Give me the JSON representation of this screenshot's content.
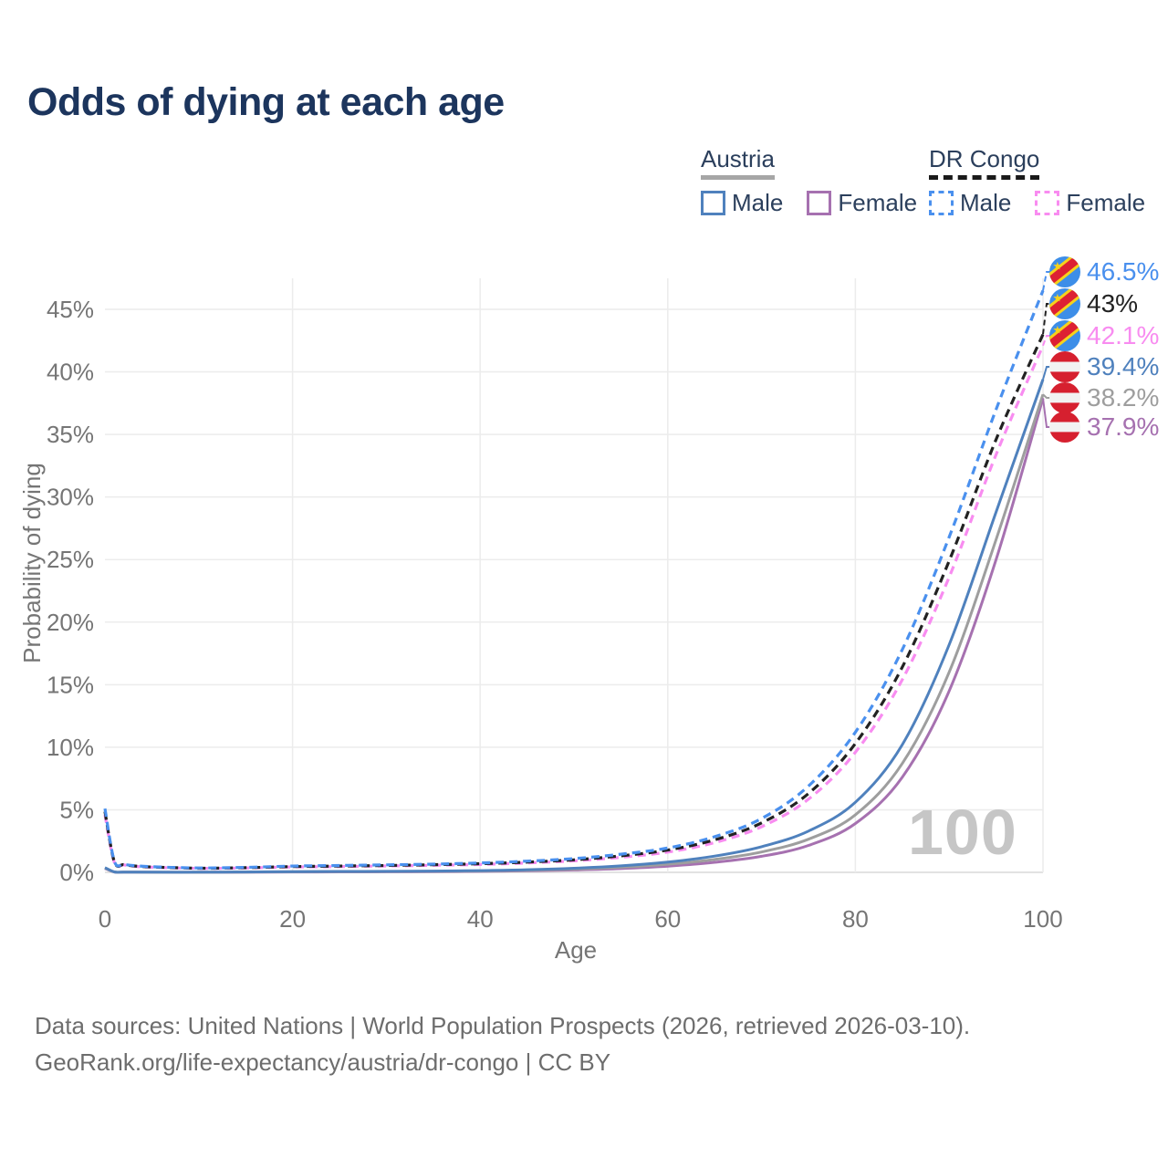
{
  "title": "Odds of dying at each age",
  "watermark": "100",
  "legend": {
    "austria": {
      "country": "Austria",
      "male": "Male",
      "female": "Female"
    },
    "drcongo": {
      "country": "DR Congo",
      "male": "Male",
      "female": "Female"
    }
  },
  "footer": {
    "line1": "Data sources: United Nations | World Population Prospects (2026, retrieved 2026-03-10).",
    "line2": "GeoRank.org/life-expectancy/austria/dr-congo | CC BY"
  },
  "colors": {
    "title": "#1c355d",
    "legend_text": "#2b3f5c",
    "austria_underline": "#a6a6a6",
    "drcongo_underline": "#1a1a1a",
    "axis_text": "#757575",
    "grid": "#ececec",
    "grid_zero": "#d9d9d9",
    "watermark": "#c6c6c6",
    "footer_text": "#6d6d6d",
    "flag_austria_red": "#d6202f",
    "flag_austria_white": "#f2f2f2",
    "flag_congo_blue": "#3d8ee8",
    "flag_congo_red": "#dd2033",
    "flag_congo_yellow": "#f7d21b"
  },
  "chart_data": {
    "type": "line",
    "title": "Odds of dying at each age",
    "xlabel": "Age",
    "ylabel": "Probability of dying",
    "xlim": [
      0,
      100
    ],
    "ylim_percent": [
      0,
      47.5
    ],
    "xticks": [
      0,
      20,
      40,
      60,
      80,
      100
    ],
    "yticks_percent": [
      0,
      5,
      10,
      15,
      20,
      25,
      30,
      35,
      40,
      45
    ],
    "ytick_suffix": "%",
    "grid": true,
    "legend_position": "top-right",
    "ages": [
      0,
      1,
      2,
      3,
      5,
      10,
      15,
      20,
      25,
      30,
      35,
      40,
      45,
      50,
      55,
      60,
      65,
      70,
      75,
      80,
      85,
      90,
      95,
      100
    ],
    "series": [
      {
        "id": "congo_male",
        "name": "DR Congo Male",
        "country": "DR Congo",
        "sex": "Male",
        "flag": "cd",
        "dash": true,
        "color": "#4a90ee",
        "end_label": "46.5%",
        "end_value": 46.5,
        "values": [
          5.1,
          0.9,
          0.65,
          0.55,
          0.45,
          0.35,
          0.4,
          0.5,
          0.55,
          0.6,
          0.66,
          0.75,
          0.9,
          1.1,
          1.45,
          1.95,
          2.85,
          4.3,
          6.9,
          11.2,
          17.8,
          26.8,
          37.0,
          46.5
        ]
      },
      {
        "id": "congo_both",
        "name": "DR Congo Both sexes",
        "country": "DR Congo",
        "sex": "Both",
        "flag": "cd",
        "dash": true,
        "color": "#222222",
        "end_label": "43%",
        "end_value": 43.0,
        "values": [
          4.85,
          0.85,
          0.62,
          0.52,
          0.43,
          0.33,
          0.37,
          0.46,
          0.5,
          0.55,
          0.61,
          0.69,
          0.82,
          1.0,
          1.32,
          1.78,
          2.6,
          3.95,
          6.3,
          10.3,
          16.4,
          24.9,
          34.6,
          43.0
        ]
      },
      {
        "id": "congo_female",
        "name": "DR Congo Female",
        "country": "DR Congo",
        "sex": "Female",
        "flag": "cd",
        "dash": true,
        "color": "#f88cf0",
        "end_label": "42.1%",
        "end_value": 42.1,
        "values": [
          4.6,
          0.8,
          0.6,
          0.5,
          0.41,
          0.32,
          0.35,
          0.43,
          0.46,
          0.51,
          0.56,
          0.63,
          0.75,
          0.92,
          1.2,
          1.62,
          2.38,
          3.65,
          5.85,
          9.6,
          15.4,
          23.6,
          33.4,
          42.1
        ]
      },
      {
        "id": "austria_male",
        "name": "Austria Male",
        "country": "Austria",
        "sex": "Male",
        "flag": "at",
        "dash": false,
        "color": "#4f81bd",
        "end_label": "39.4%",
        "end_value": 39.4,
        "values": [
          0.38,
          0.04,
          0.02,
          0.015,
          0.012,
          0.012,
          0.03,
          0.06,
          0.07,
          0.08,
          0.1,
          0.14,
          0.21,
          0.33,
          0.52,
          0.82,
          1.3,
          2.05,
          3.3,
          5.6,
          10.2,
          18.2,
          28.8,
          39.4
        ]
      },
      {
        "id": "austria_both",
        "name": "Austria Both sexes",
        "country": "Austria",
        "sex": "Both",
        "flag": "at",
        "dash": false,
        "color": "#9e9e9e",
        "end_label": "38.2%",
        "end_value": 38.2,
        "values": [
          0.34,
          0.035,
          0.018,
          0.013,
          0.01,
          0.01,
          0.025,
          0.045,
          0.055,
          0.065,
          0.08,
          0.11,
          0.17,
          0.26,
          0.41,
          0.65,
          1.03,
          1.63,
          2.65,
          4.6,
          8.7,
          16.0,
          26.6,
          38.2
        ]
      },
      {
        "id": "austria_female",
        "name": "Austria Female",
        "country": "Austria",
        "sex": "Female",
        "flag": "at",
        "dash": false,
        "color": "#a671b0",
        "end_label": "37.9%",
        "end_value": 37.9,
        "values": [
          0.31,
          0.03,
          0.015,
          0.012,
          0.009,
          0.009,
          0.018,
          0.028,
          0.033,
          0.042,
          0.056,
          0.08,
          0.125,
          0.19,
          0.3,
          0.49,
          0.8,
          1.28,
          2.15,
          3.9,
          7.6,
          14.5,
          25.0,
          37.9
        ]
      }
    ]
  }
}
